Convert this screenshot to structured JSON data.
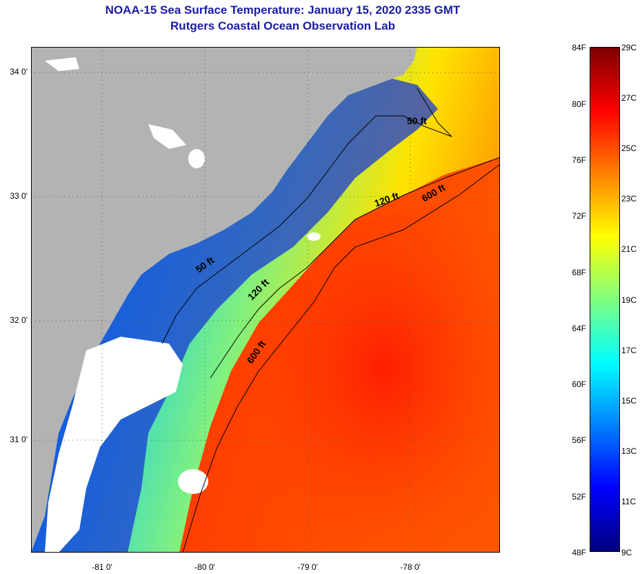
{
  "title": "NOAA-15 Sea Surface Temperature:  January 15, 2020 2335 GMT",
  "subtitle": "Rutgers Coastal Ocean Observation Lab",
  "map": {
    "lat_ticks": [
      "34 0'",
      "33 0'",
      "32 0'",
      "31 0'"
    ],
    "lon_ticks": [
      "-81 0'",
      "-80 0'",
      "-79 0'",
      "-78 0'"
    ],
    "contours": [
      {
        "label": "50 ft"
      },
      {
        "label": "120 ft"
      },
      {
        "label": "600 ft"
      },
      {
        "label": "50 ft"
      },
      {
        "label": "120 ft"
      },
      {
        "label": "600 ft"
      }
    ],
    "colors": {
      "land": "#b3b3b3",
      "cloud": "#ffffff",
      "cold": "#1a3ad6",
      "warm": "#ff3a00"
    }
  },
  "colorbar": {
    "fahrenheit": [
      "84F",
      "80F",
      "76F",
      "72F",
      "68F",
      "64F",
      "60F",
      "56F",
      "52F",
      "48F"
    ],
    "celsius": [
      "29C",
      "27C",
      "25C",
      "23C",
      "21C",
      "19C",
      "17C",
      "15C",
      "13C",
      "11C",
      "9C"
    ],
    "gradient": [
      "#00007f",
      "#0000ff",
      "#0080ff",
      "#00ffff",
      "#80ff80",
      "#ffff00",
      "#ff8000",
      "#ff0000",
      "#7f0000"
    ]
  }
}
